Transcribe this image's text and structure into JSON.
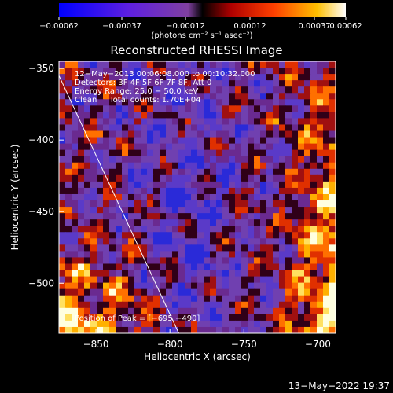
{
  "chart_data": {
    "type": "heatmap",
    "title": "Reconstructed RHESSI Image",
    "xlabel": "Heliocentric X (arcsec)",
    "ylabel": "Heliocentric Y (arcsec)",
    "xlim": [
      -875,
      -688
    ],
    "ylim": [
      -535,
      -345
    ],
    "x_ticks": [
      -850,
      -800,
      -750,
      -700
    ],
    "y_ticks": [
      -350,
      -400,
      -450,
      -500
    ],
    "x_tick_labels": [
      "−850",
      "−800",
      "−750",
      "−700"
    ],
    "y_tick_labels": [
      "−350",
      "−400",
      "−450",
      "−500"
    ],
    "colorbar": {
      "min": -0.00062,
      "max": 0.00062,
      "tick_labels": [
        "−0.00062",
        "−0.00037",
        "−0.00012",
        "0.00012",
        "0.00037",
        "0.00062"
      ],
      "unit_label": "(photons cm⁻² s⁻¹ asec⁻²)"
    },
    "annotations": [
      "12−May−2013 00:06:08.000 to 00:10:32.000",
      "Detectors: 3F 4F 5F 6F 7F 8F, Att 0",
      "Energy Range: 25.0 − 50.0 keV",
      "Clean     Total counts: 1.70E+04"
    ],
    "peak_label": "Position of Peak = [−695,−490]",
    "peak_position": [
      -695,
      -490
    ],
    "limb_line": [
      [
        -875,
        -355
      ],
      [
        -794,
        -535
      ]
    ]
  },
  "footer": {
    "timestamp": "13−May−2022 19:37"
  },
  "colors": {
    "background": "#000000",
    "text": "#ffffff"
  }
}
